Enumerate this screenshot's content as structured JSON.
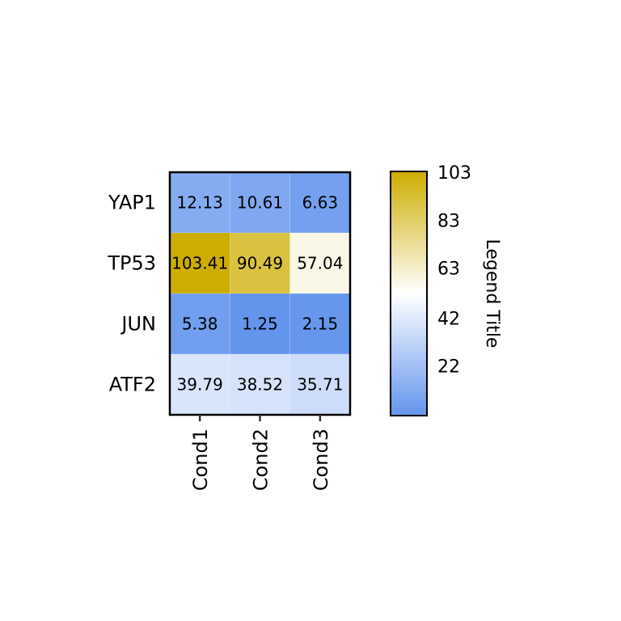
{
  "chart_data": {
    "type": "heatmap",
    "rows": [
      "YAP1",
      "TP53",
      "JUN",
      "ATF2"
    ],
    "columns": [
      "Cond1",
      "Cond2",
      "Cond3"
    ],
    "values": [
      [
        12.13,
        10.61,
        6.63
      ],
      [
        103.41,
        90.49,
        57.04
      ],
      [
        5.38,
        1.25,
        2.15
      ],
      [
        39.79,
        38.52,
        35.71
      ]
    ],
    "cell_labels": [
      [
        "12.13",
        "10.61",
        "6.63"
      ],
      [
        "103.41",
        "90.49",
        "57.04"
      ],
      [
        "5.38",
        "1.25",
        "2.15"
      ],
      [
        "39.79",
        "38.52",
        "35.71"
      ]
    ],
    "legend": {
      "title": "Legend Title",
      "ticks": [
        103,
        83,
        63,
        42,
        22
      ],
      "range": [
        1.25,
        103.41
      ],
      "colors": {
        "low": "#6495ed",
        "mid": "#ffffff",
        "high": "#cdad00"
      }
    }
  }
}
